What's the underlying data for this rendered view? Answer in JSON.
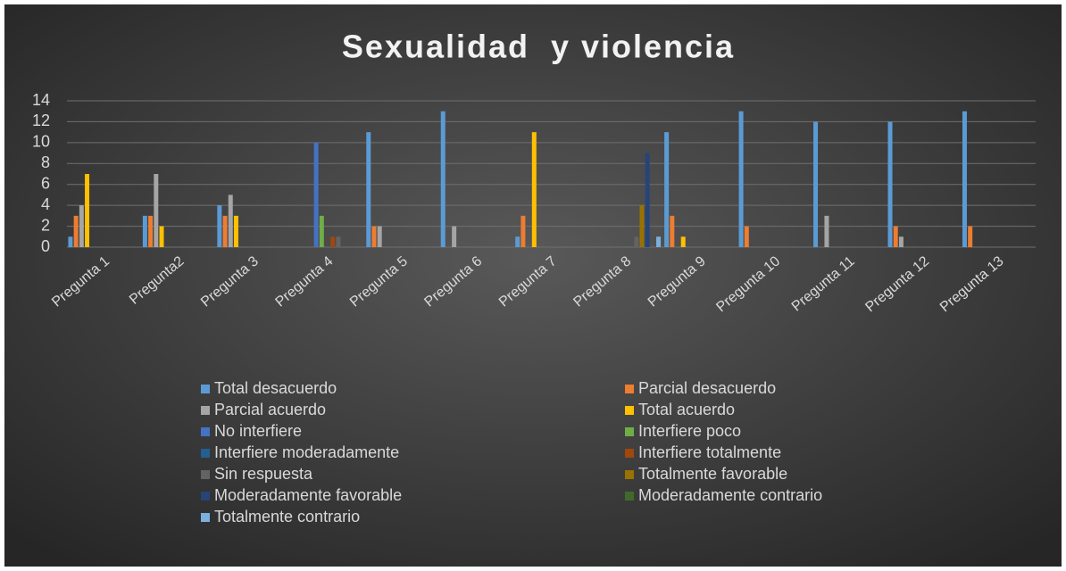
{
  "chart_data": {
    "type": "bar",
    "title": "Sexualidad  y violencia",
    "categories": [
      "Pregunta 1",
      "Pregunta2",
      "Pregunta 3",
      "Pregunta 4",
      "Pregunta 5",
      "Pregunta 6",
      "Pregunta 7",
      "Pregunta 8",
      "Pregunta 9",
      "Pregunta 10",
      "Pregunta 11",
      "Pregunta 12",
      "Pregunta 13"
    ],
    "series": [
      {
        "name": "Total desacuerdo",
        "color": "#5b9bd5",
        "values": [
          1,
          3,
          4,
          null,
          11,
          13,
          1,
          null,
          11,
          13,
          12,
          12,
          13
        ]
      },
      {
        "name": "Parcial desacuerdo",
        "color": "#ed7d31",
        "values": [
          3,
          3,
          3,
          null,
          2,
          null,
          3,
          null,
          3,
          2,
          null,
          2,
          2
        ]
      },
      {
        "name": "Parcial acuerdo",
        "color": "#a5a5a5",
        "values": [
          4,
          7,
          5,
          null,
          2,
          2,
          null,
          null,
          null,
          null,
          3,
          1,
          null
        ]
      },
      {
        "name": "Total acuerdo",
        "color": "#ffc000",
        "values": [
          7,
          2,
          3,
          null,
          null,
          null,
          11,
          null,
          1,
          null,
          null,
          null,
          null
        ]
      },
      {
        "name": "No interfiere",
        "color": "#4472c4",
        "values": [
          null,
          null,
          null,
          10,
          null,
          null,
          null,
          null,
          null,
          null,
          null,
          null,
          null
        ]
      },
      {
        "name": "Interfiere poco",
        "color": "#70ad47",
        "values": [
          null,
          null,
          null,
          3,
          null,
          null,
          null,
          null,
          null,
          null,
          null,
          null,
          null
        ]
      },
      {
        "name": "Interfiere moderadamente",
        "color": "#255e91",
        "values": [
          null,
          null,
          null,
          null,
          null,
          null,
          null,
          null,
          null,
          null,
          null,
          null,
          null
        ]
      },
      {
        "name": "Interfiere totalmente",
        "color": "#9e480e",
        "values": [
          null,
          null,
          null,
          1,
          null,
          null,
          null,
          null,
          null,
          null,
          null,
          null,
          null
        ]
      },
      {
        "name": "Sin respuesta",
        "color": "#636363",
        "values": [
          null,
          null,
          null,
          1,
          null,
          null,
          null,
          1,
          null,
          null,
          null,
          null,
          null
        ]
      },
      {
        "name": "Totalmente favorable",
        "color": "#997300",
        "values": [
          null,
          null,
          null,
          null,
          null,
          null,
          null,
          4,
          null,
          null,
          null,
          null,
          null
        ]
      },
      {
        "name": "Moderadamente favorable",
        "color": "#264478",
        "values": [
          null,
          null,
          null,
          null,
          null,
          null,
          null,
          9,
          null,
          null,
          null,
          null,
          null
        ]
      },
      {
        "name": "Moderadamente contrario",
        "color": "#43682b",
        "values": [
          null,
          null,
          null,
          null,
          null,
          null,
          null,
          null,
          null,
          null,
          null,
          null,
          null
        ]
      },
      {
        "name": "Totalmente contrario",
        "color": "#7cafdd",
        "values": [
          null,
          null,
          null,
          null,
          null,
          null,
          null,
          1,
          null,
          null,
          null,
          null,
          null
        ]
      }
    ],
    "ylim": [
      0,
      14
    ],
    "yticks": [
      0,
      2,
      4,
      6,
      8,
      10,
      12,
      14
    ],
    "grid": true,
    "legend": "bottom"
  }
}
